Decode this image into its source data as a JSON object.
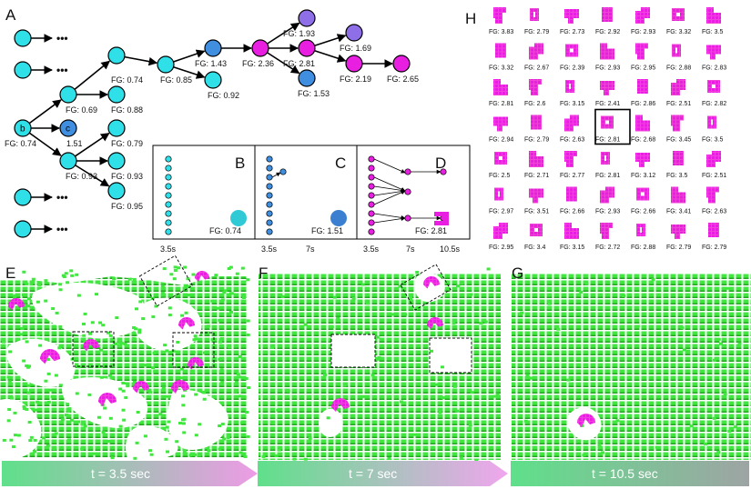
{
  "colors": {
    "cyan": "#2fe0e8",
    "blue": "#3f8ee0",
    "magenta": "#e81ee0",
    "violet": "#8f6fe8",
    "green": "#3ee83c",
    "pink": "#ee44cc"
  },
  "panel_labels": {
    "A": "A",
    "B": "B",
    "C": "C",
    "D": "D",
    "E": "E",
    "F": "F",
    "G": "G",
    "H": "H"
  },
  "tree": {
    "nodes": [
      {
        "id": "b",
        "label": "b",
        "color": "cyan",
        "fg": "FG: 0.74"
      },
      {
        "id": "c",
        "label": "c",
        "color": "blue",
        "fg": "1.51"
      },
      {
        "id": "n1",
        "label": "",
        "color": "cyan",
        "fg": "FG: 0.69"
      },
      {
        "id": "n2",
        "label": "",
        "color": "cyan",
        "fg": "FG: 0.93"
      },
      {
        "id": "n3",
        "label": "",
        "color": "cyan",
        "fg": "FG: 0.74"
      },
      {
        "id": "n4",
        "label": "",
        "color": "cyan",
        "fg": "FG: 0.88"
      },
      {
        "id": "n5",
        "label": "",
        "color": "cyan",
        "fg": "FG: 0.79"
      },
      {
        "id": "n6",
        "label": "",
        "color": "cyan",
        "fg": "FG: 0.93"
      },
      {
        "id": "n7",
        "label": "",
        "color": "cyan",
        "fg": "FG: 0.95"
      },
      {
        "id": "n8",
        "label": "",
        "color": "cyan",
        "fg": "FG: 0.85"
      },
      {
        "id": "n9",
        "label": "",
        "color": "blue",
        "fg": "FG: 1.43"
      },
      {
        "id": "n10",
        "label": "",
        "color": "cyan",
        "fg": "FG: 0.92"
      },
      {
        "id": "n11",
        "label": "",
        "color": "magenta",
        "fg": "FG: 2.36"
      },
      {
        "id": "n12",
        "label": "",
        "color": "violet",
        "fg": "FG: 1.93"
      },
      {
        "id": "n13",
        "label": "",
        "color": "magenta",
        "fg": "FG: 2.81"
      },
      {
        "id": "n14",
        "label": "",
        "color": "blue",
        "fg": "FG: 1.53"
      },
      {
        "id": "n15",
        "label": "",
        "color": "violet",
        "fg": "FG: 1.69"
      },
      {
        "id": "n16",
        "label": "",
        "color": "magenta",
        "fg": "FG: 2.19"
      },
      {
        "id": "n17",
        "label": "",
        "color": "magenta",
        "fg": "FG: 2.65"
      }
    ],
    "ellipsis": "•••"
  },
  "inset": {
    "panels": [
      {
        "label": "B",
        "color": "cyan",
        "fg": "FG: 0.74"
      },
      {
        "label": "C",
        "color": "blue",
        "fg": "FG: 1.51"
      },
      {
        "label": "D",
        "color": "magenta",
        "fg": "FG: 2.81"
      }
    ],
    "ticks": [
      "3.5s",
      "3.5s",
      "7s",
      "3.5s",
      "7s",
      "10.5s"
    ]
  },
  "shapes_grid": {
    "rows": [
      [
        "FG: 3.83",
        "FG: 2.79",
        "FG: 2.73",
        "FG: 2.92",
        "FG: 2.93",
        "FG: 3.32",
        "FG: 3.5"
      ],
      [
        "FG: 3.32",
        "FG: 2.67",
        "FG: 2.39",
        "FG: 2.93",
        "FG: 2.95",
        "FG: 2.88",
        "FG: 2.83"
      ],
      [
        "FG: 2.81",
        "FG: 2.6",
        "FG: 3.15",
        "FG: 2.41",
        "FG: 2.86",
        "FG: 2.51",
        "FG: 2.82"
      ],
      [
        "FG: 2.94",
        "FG: 2.79",
        "FG: 2.63",
        "FG: 2.81",
        "FG: 2.68",
        "FG: 3.45",
        "FG: 3.5"
      ],
      [
        "FG: 2.5",
        "FG: 2.71",
        "FG: 2.77",
        "FG: 2.81",
        "FG: 3.12",
        "FG: 3.5",
        "FG: 2.51"
      ],
      [
        "FG: 2.97",
        "FG: 3.51",
        "FG: 2.66",
        "FG: 2.93",
        "FG: 2.66",
        "FG: 3.41",
        "FG: 2.63"
      ],
      [
        "FG: 2.95",
        "FG: 3.4",
        "FG: 3.15",
        "FG: 2.72",
        "FG: 2.88",
        "FG: 2.79",
        "FG: 2.79"
      ]
    ],
    "highlighted": {
      "row": 3,
      "col": 3
    }
  },
  "snapshots": [
    {
      "label": "E",
      "time": "t = 3.5 sec"
    },
    {
      "label": "F",
      "time": "t = 7 sec"
    },
    {
      "label": "G",
      "time": "t = 10.5 sec"
    }
  ]
}
